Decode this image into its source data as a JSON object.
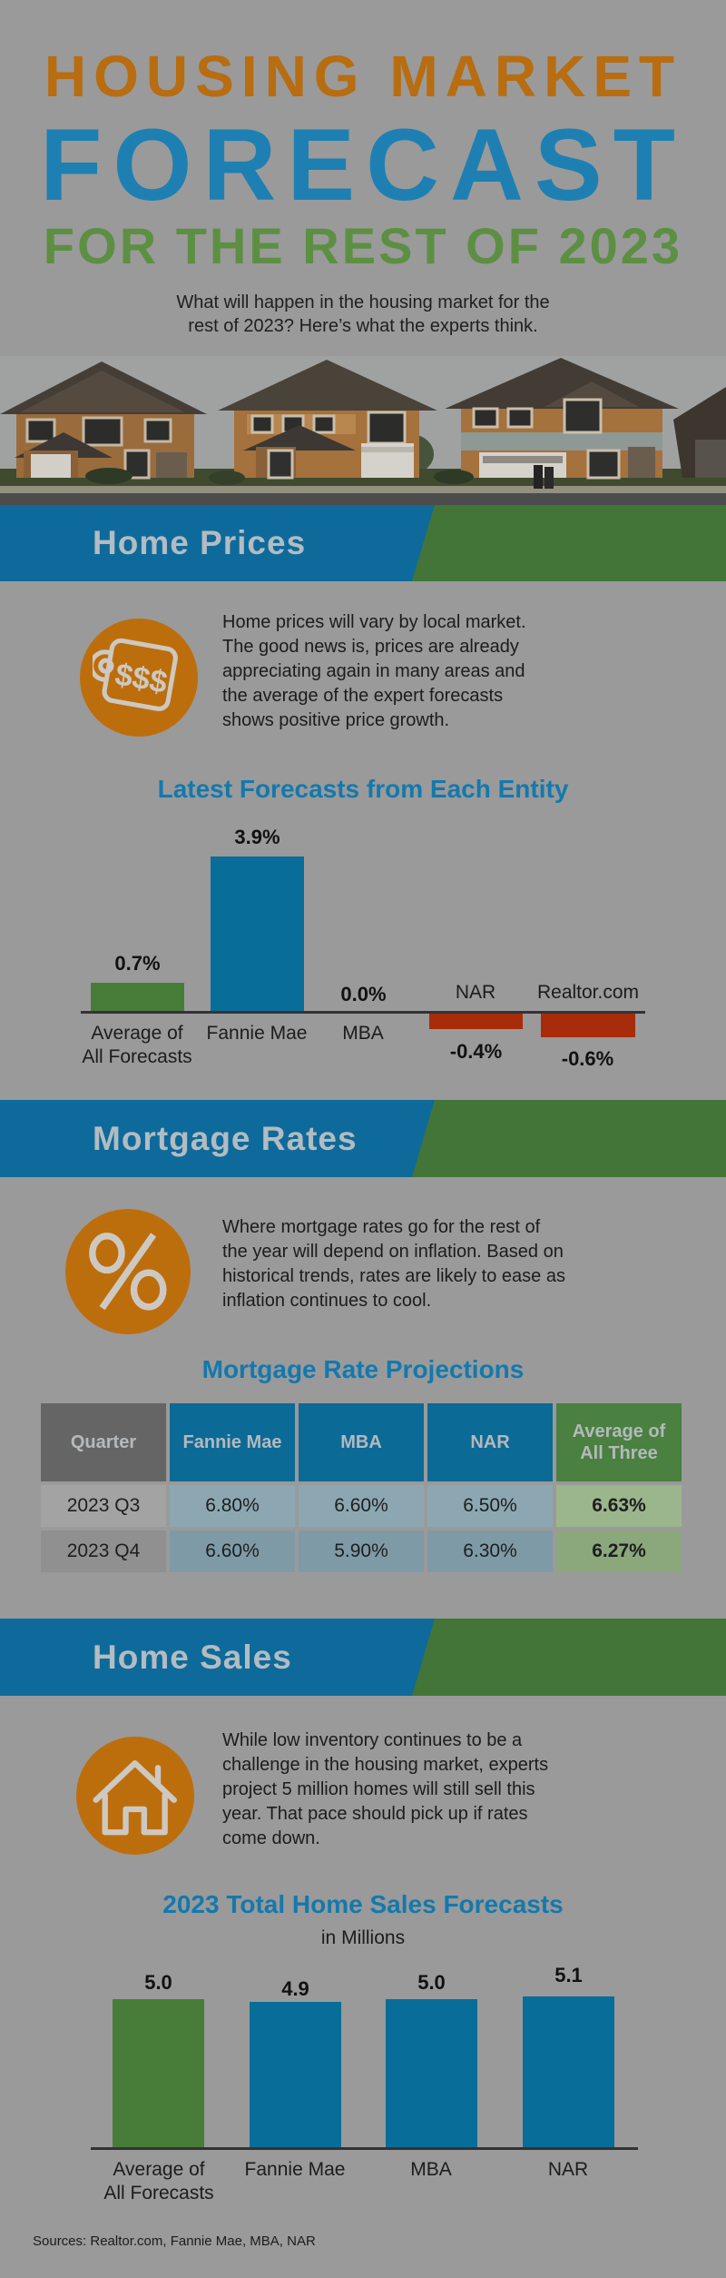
{
  "palette": {
    "background": "#9a9a9a",
    "title_orange": "#b76d10",
    "title_blue": "#1e80b2",
    "title_green": "#5d8f43",
    "banner_blue": "#0e6a9a",
    "banner_green": "#437539",
    "icon_orange": "#bd6e0c",
    "bar_green": "#477d38",
    "bar_blue": "#086d99",
    "bar_red": "#a82c0b",
    "chart_title_blue": "#1379ad"
  },
  "header": {
    "title_line1": "HOUSING MARKET",
    "title_line2": "FORECAST",
    "title_line3": "FOR THE REST OF 2023",
    "subtitle": "What will happen in the housing market for the\nrest of 2023? Here’s what the experts think."
  },
  "sections": [
    {
      "banner": "Home Prices",
      "icon": "price-tag-icon",
      "icon_text": "$$$",
      "paragraph": "Home prices will vary by local market.\nThe good news is, prices are already\nappreciating again in many areas and\nthe average of the expert forecasts\nshows positive price growth."
    },
    {
      "banner": "Mortgage Rates",
      "icon": "percent-icon",
      "paragraph": "Where mortgage rates go for the rest of\nthe year will depend on inflation. Based on\nhistorical trends, rates are likely to ease as\ninflation continues to cool."
    },
    {
      "banner": "Home Sales",
      "icon": "house-icon",
      "paragraph": "While low inventory continues to be a\nchallenge in the housing market, experts\nproject 5 million homes will still sell this\nyear. That pace should pick up if rates\ncome down."
    }
  ],
  "chart_data": [
    {
      "type": "bar",
      "title": "Latest Forecasts from Each Entity",
      "categories": [
        "Average of\nAll Forecasts",
        "Fannie Mae",
        "MBA",
        "NAR",
        "Realtor.com"
      ],
      "values": [
        0.7,
        3.9,
        0.0,
        -0.4,
        -0.6
      ],
      "value_labels": [
        "0.7%",
        "3.9%",
        "0.0%",
        "-0.4%",
        "-0.6%"
      ],
      "bar_colors": [
        "green",
        "blue",
        "none",
        "red",
        "red"
      ],
      "ylim": [
        -0.6,
        3.9
      ],
      "grid": false,
      "legend": "none"
    },
    {
      "type": "table",
      "title": "Mortgage Rate Projections",
      "columns": [
        "Quarter",
        "Fannie Mae",
        "MBA",
        "NAR",
        "Average of All Three"
      ],
      "rows": [
        [
          "2023 Q3",
          "6.80%",
          "6.60%",
          "6.50%",
          "6.63%"
        ],
        [
          "2023 Q4",
          "6.60%",
          "5.90%",
          "6.30%",
          "6.27%"
        ]
      ]
    },
    {
      "type": "bar",
      "title": "2023 Total Home Sales Forecasts",
      "subtitle": "in Millions",
      "categories": [
        "Average of\nAll Forecasts",
        "Fannie Mae",
        "MBA",
        "NAR"
      ],
      "values": [
        5.0,
        4.9,
        5.0,
        5.1
      ],
      "value_labels": [
        "5.0",
        "4.9",
        "5.0",
        "5.1"
      ],
      "bar_colors": [
        "green",
        "blue",
        "blue",
        "blue"
      ],
      "ylim": [
        0,
        5.1
      ],
      "grid": false,
      "legend": "none"
    }
  ],
  "footer": {
    "sources": "Sources: Realtor.com, Fannie Mae, MBA, NAR"
  }
}
